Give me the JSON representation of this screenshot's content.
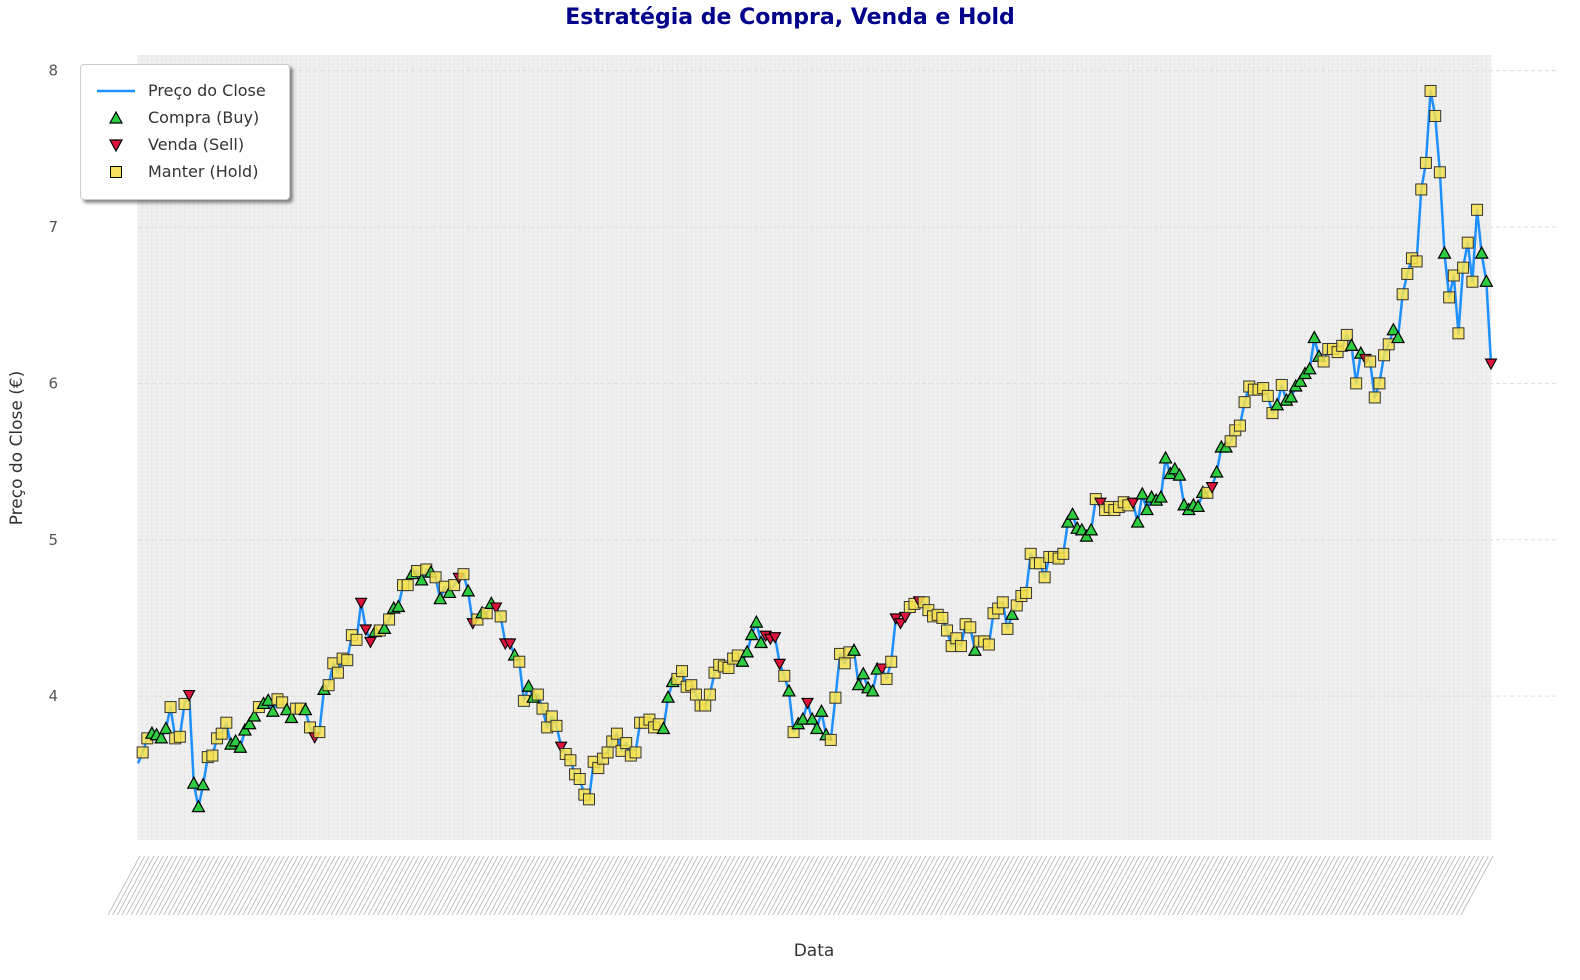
{
  "chart_data": {
    "type": "line",
    "title": "Estratégia de Compra, Venda e Hold",
    "xlabel": "Data",
    "ylabel": "Preço do Close (€)",
    "ylim": [
      3.08,
      8.1
    ],
    "yticks": [
      4,
      5,
      6,
      7,
      8
    ],
    "grid": true,
    "legend_position": "top-left",
    "series": [
      {
        "name": "Preço do Close",
        "marker": "line",
        "color": "#1e90ff"
      },
      {
        "name": "Compra (Buy)",
        "marker": "triangle-up",
        "color": "#2ecc40"
      },
      {
        "name": "Venda (Sell)",
        "marker": "triangle-down",
        "color": "#dc143c"
      },
      {
        "name": "Manter (Hold)",
        "marker": "square",
        "color": "#f4e04d"
      }
    ],
    "legend": [
      "Preço do Close",
      "Compra (Buy)",
      "Venda (Sell)",
      "Manter (Hold)"
    ],
    "points": [
      [
        3.57,
        "L"
      ],
      [
        3.64,
        "H"
      ],
      [
        3.73,
        "H"
      ],
      [
        3.76,
        "B"
      ],
      [
        3.75,
        "B"
      ],
      [
        3.73,
        "B"
      ],
      [
        3.79,
        "B"
      ],
      [
        3.93,
        "H"
      ],
      [
        3.73,
        "H"
      ],
      [
        3.74,
        "H"
      ],
      [
        3.95,
        "H"
      ],
      [
        4.01,
        "S"
      ],
      [
        3.44,
        "B"
      ],
      [
        3.29,
        "B"
      ],
      [
        3.43,
        "B"
      ],
      [
        3.61,
        "H"
      ],
      [
        3.62,
        "H"
      ],
      [
        3.73,
        "H"
      ],
      [
        3.76,
        "H"
      ],
      [
        3.83,
        "H"
      ],
      [
        3.69,
        "B"
      ],
      [
        3.71,
        "B"
      ],
      [
        3.67,
        "B"
      ],
      [
        3.78,
        "B"
      ],
      [
        3.82,
        "B"
      ],
      [
        3.87,
        "B"
      ],
      [
        3.93,
        "H"
      ],
      [
        3.95,
        "B"
      ],
      [
        3.97,
        "B"
      ],
      [
        3.9,
        "B"
      ],
      [
        3.98,
        "H"
      ],
      [
        3.96,
        "H"
      ],
      [
        3.91,
        "B"
      ],
      [
        3.86,
        "B"
      ],
      [
        3.92,
        "H"
      ],
      [
        3.92,
        "H"
      ],
      [
        3.91,
        "B"
      ],
      [
        3.8,
        "H"
      ],
      [
        3.74,
        "S"
      ],
      [
        3.77,
        "H"
      ],
      [
        4.04,
        "B"
      ],
      [
        4.07,
        "H"
      ],
      [
        4.21,
        "H"
      ],
      [
        4.15,
        "H"
      ],
      [
        4.24,
        "H"
      ],
      [
        4.23,
        "H"
      ],
      [
        4.39,
        "H"
      ],
      [
        4.36,
        "H"
      ],
      [
        4.6,
        "S"
      ],
      [
        4.43,
        "S"
      ],
      [
        4.35,
        "S"
      ],
      [
        4.41,
        "B"
      ],
      [
        4.42,
        "H"
      ],
      [
        4.43,
        "B"
      ],
      [
        4.49,
        "H"
      ],
      [
        4.56,
        "B"
      ],
      [
        4.57,
        "B"
      ],
      [
        4.71,
        "H"
      ],
      [
        4.71,
        "H"
      ],
      [
        4.78,
        "B"
      ],
      [
        4.8,
        "H"
      ],
      [
        4.74,
        "B"
      ],
      [
        4.81,
        "H"
      ],
      [
        4.79,
        "B"
      ],
      [
        4.76,
        "H"
      ],
      [
        4.62,
        "B"
      ],
      [
        4.7,
        "H"
      ],
      [
        4.66,
        "B"
      ],
      [
        4.71,
        "H"
      ],
      [
        4.76,
        "S"
      ],
      [
        4.78,
        "H"
      ],
      [
        4.67,
        "B"
      ],
      [
        4.47,
        "S"
      ],
      [
        4.49,
        "H"
      ],
      [
        4.53,
        "B"
      ],
      [
        4.53,
        "H"
      ],
      [
        4.59,
        "B"
      ],
      [
        4.57,
        "S"
      ],
      [
        4.51,
        "H"
      ],
      [
        4.34,
        "S"
      ],
      [
        4.34,
        "S"
      ],
      [
        4.26,
        "B"
      ],
      [
        4.22,
        "H"
      ],
      [
        3.97,
        "H"
      ],
      [
        4.06,
        "B"
      ],
      [
        3.99,
        "B"
      ],
      [
        4.01,
        "H"
      ],
      [
        3.92,
        "H"
      ],
      [
        3.8,
        "H"
      ],
      [
        3.87,
        "H"
      ],
      [
        3.81,
        "H"
      ],
      [
        3.68,
        "S"
      ],
      [
        3.63,
        "H"
      ],
      [
        3.59,
        "H"
      ],
      [
        3.5,
        "H"
      ],
      [
        3.47,
        "H"
      ],
      [
        3.37,
        "H"
      ],
      [
        3.34,
        "H"
      ],
      [
        3.58,
        "H"
      ],
      [
        3.54,
        "H"
      ],
      [
        3.6,
        "H"
      ],
      [
        3.64,
        "H"
      ],
      [
        3.71,
        "H"
      ],
      [
        3.76,
        "H"
      ],
      [
        3.65,
        "H"
      ],
      [
        3.7,
        "H"
      ],
      [
        3.62,
        "H"
      ],
      [
        3.64,
        "H"
      ],
      [
        3.83,
        "H"
      ],
      [
        3.83,
        "H"
      ],
      [
        3.85,
        "H"
      ],
      [
        3.8,
        "H"
      ],
      [
        3.82,
        "H"
      ],
      [
        3.79,
        "B"
      ],
      [
        3.99,
        "B"
      ],
      [
        4.09,
        "B"
      ],
      [
        4.11,
        "H"
      ],
      [
        4.16,
        "H"
      ],
      [
        4.06,
        "H"
      ],
      [
        4.07,
        "H"
      ],
      [
        4.01,
        "H"
      ],
      [
        3.94,
        "H"
      ],
      [
        3.94,
        "H"
      ],
      [
        4.01,
        "H"
      ],
      [
        4.15,
        "H"
      ],
      [
        4.2,
        "H"
      ],
      [
        4.19,
        "H"
      ],
      [
        4.18,
        "H"
      ],
      [
        4.24,
        "H"
      ],
      [
        4.26,
        "H"
      ],
      [
        4.22,
        "B"
      ],
      [
        4.28,
        "B"
      ],
      [
        4.39,
        "B"
      ],
      [
        4.47,
        "B"
      ],
      [
        4.34,
        "B"
      ],
      [
        4.39,
        "S"
      ],
      [
        4.37,
        "S"
      ],
      [
        4.38,
        "S"
      ],
      [
        4.21,
        "S"
      ],
      [
        4.13,
        "H"
      ],
      [
        4.03,
        "B"
      ],
      [
        3.77,
        "H"
      ],
      [
        3.82,
        "B"
      ],
      [
        3.85,
        "B"
      ],
      [
        3.96,
        "S"
      ],
      [
        3.85,
        "B"
      ],
      [
        3.79,
        "B"
      ],
      [
        3.9,
        "B"
      ],
      [
        3.75,
        "B"
      ],
      [
        3.72,
        "H"
      ],
      [
        3.99,
        "H"
      ],
      [
        4.27,
        "H"
      ],
      [
        4.21,
        "H"
      ],
      [
        4.28,
        "H"
      ],
      [
        4.29,
        "B"
      ],
      [
        4.07,
        "B"
      ],
      [
        4.14,
        "B"
      ],
      [
        4.05,
        "B"
      ],
      [
        4.03,
        "B"
      ],
      [
        4.17,
        "B"
      ],
      [
        4.18,
        "S"
      ],
      [
        4.11,
        "H"
      ],
      [
        4.22,
        "H"
      ],
      [
        4.5,
        "S"
      ],
      [
        4.47,
        "S"
      ],
      [
        4.51,
        "S"
      ],
      [
        4.57,
        "H"
      ],
      [
        4.59,
        "H"
      ],
      [
        4.61,
        "S"
      ],
      [
        4.6,
        "H"
      ],
      [
        4.55,
        "H"
      ],
      [
        4.51,
        "H"
      ],
      [
        4.52,
        "H"
      ],
      [
        4.5,
        "H"
      ],
      [
        4.42,
        "H"
      ],
      [
        4.32,
        "H"
      ],
      [
        4.37,
        "H"
      ],
      [
        4.32,
        "H"
      ],
      [
        4.46,
        "H"
      ],
      [
        4.44,
        "H"
      ],
      [
        4.29,
        "B"
      ],
      [
        4.35,
        "H"
      ],
      [
        4.35,
        "H"
      ],
      [
        4.33,
        "H"
      ],
      [
        4.53,
        "H"
      ],
      [
        4.56,
        "H"
      ],
      [
        4.6,
        "H"
      ],
      [
        4.43,
        "H"
      ],
      [
        4.52,
        "B"
      ],
      [
        4.58,
        "H"
      ],
      [
        4.64,
        "H"
      ],
      [
        4.66,
        "H"
      ],
      [
        4.91,
        "H"
      ],
      [
        4.85,
        "H"
      ],
      [
        4.85,
        "H"
      ],
      [
        4.76,
        "H"
      ],
      [
        4.89,
        "H"
      ],
      [
        4.89,
        "H"
      ],
      [
        4.88,
        "H"
      ],
      [
        4.91,
        "H"
      ],
      [
        5.11,
        "B"
      ],
      [
        5.16,
        "B"
      ],
      [
        5.07,
        "B"
      ],
      [
        5.06,
        "B"
      ],
      [
        5.02,
        "B"
      ],
      [
        5.06,
        "B"
      ],
      [
        5.26,
        "H"
      ],
      [
        5.24,
        "S"
      ],
      [
        5.19,
        "H"
      ],
      [
        5.21,
        "H"
      ],
      [
        5.19,
        "H"
      ],
      [
        5.21,
        "H"
      ],
      [
        5.24,
        "H"
      ],
      [
        5.22,
        "H"
      ],
      [
        5.24,
        "S"
      ],
      [
        5.11,
        "B"
      ],
      [
        5.29,
        "B"
      ],
      [
        5.19,
        "B"
      ],
      [
        5.27,
        "B"
      ],
      [
        5.25,
        "B"
      ],
      [
        5.27,
        "B"
      ],
      [
        5.52,
        "B"
      ],
      [
        5.42,
        "B"
      ],
      [
        5.45,
        "B"
      ],
      [
        5.41,
        "B"
      ],
      [
        5.22,
        "B"
      ],
      [
        5.19,
        "B"
      ],
      [
        5.22,
        "B"
      ],
      [
        5.21,
        "B"
      ],
      [
        5.3,
        "B"
      ],
      [
        5.3,
        "H"
      ],
      [
        5.34,
        "S"
      ],
      [
        5.43,
        "B"
      ],
      [
        5.59,
        "B"
      ],
      [
        5.59,
        "B"
      ],
      [
        5.63,
        "H"
      ],
      [
        5.7,
        "H"
      ],
      [
        5.73,
        "H"
      ],
      [
        5.88,
        "H"
      ],
      [
        5.98,
        "H"
      ],
      [
        5.96,
        "H"
      ],
      [
        5.96,
        "H"
      ],
      [
        5.97,
        "H"
      ],
      [
        5.92,
        "H"
      ],
      [
        5.81,
        "H"
      ],
      [
        5.86,
        "B"
      ],
      [
        5.99,
        "H"
      ],
      [
        5.89,
        "B"
      ],
      [
        5.91,
        "B"
      ],
      [
        5.98,
        "B"
      ],
      [
        6.01,
        "B"
      ],
      [
        6.06,
        "B"
      ],
      [
        6.09,
        "B"
      ],
      [
        6.29,
        "B"
      ],
      [
        6.17,
        "B"
      ],
      [
        6.14,
        "H"
      ],
      [
        6.22,
        "H"
      ],
      [
        6.22,
        "H"
      ],
      [
        6.2,
        "H"
      ],
      [
        6.24,
        "H"
      ],
      [
        6.31,
        "H"
      ],
      [
        6.24,
        "B"
      ],
      [
        6.0,
        "H"
      ],
      [
        6.19,
        "B"
      ],
      [
        6.16,
        "S"
      ],
      [
        6.14,
        "H"
      ],
      [
        5.91,
        "H"
      ],
      [
        6.0,
        "H"
      ],
      [
        6.18,
        "H"
      ],
      [
        6.25,
        "H"
      ],
      [
        6.34,
        "B"
      ],
      [
        6.29,
        "B"
      ],
      [
        6.57,
        "H"
      ],
      [
        6.7,
        "H"
      ],
      [
        6.8,
        "H"
      ],
      [
        6.78,
        "H"
      ],
      [
        7.24,
        "H"
      ],
      [
        7.41,
        "H"
      ],
      [
        7.87,
        "H"
      ],
      [
        7.71,
        "H"
      ],
      [
        7.35,
        "H"
      ],
      [
        6.83,
        "B"
      ],
      [
        6.55,
        "H"
      ],
      [
        6.69,
        "H"
      ],
      [
        6.32,
        "H"
      ],
      [
        6.74,
        "H"
      ],
      [
        6.9,
        "H"
      ],
      [
        6.65,
        "H"
      ],
      [
        7.11,
        "H"
      ],
      [
        6.83,
        "B"
      ],
      [
        6.65,
        "B"
      ],
      [
        6.13,
        "S"
      ]
    ]
  }
}
